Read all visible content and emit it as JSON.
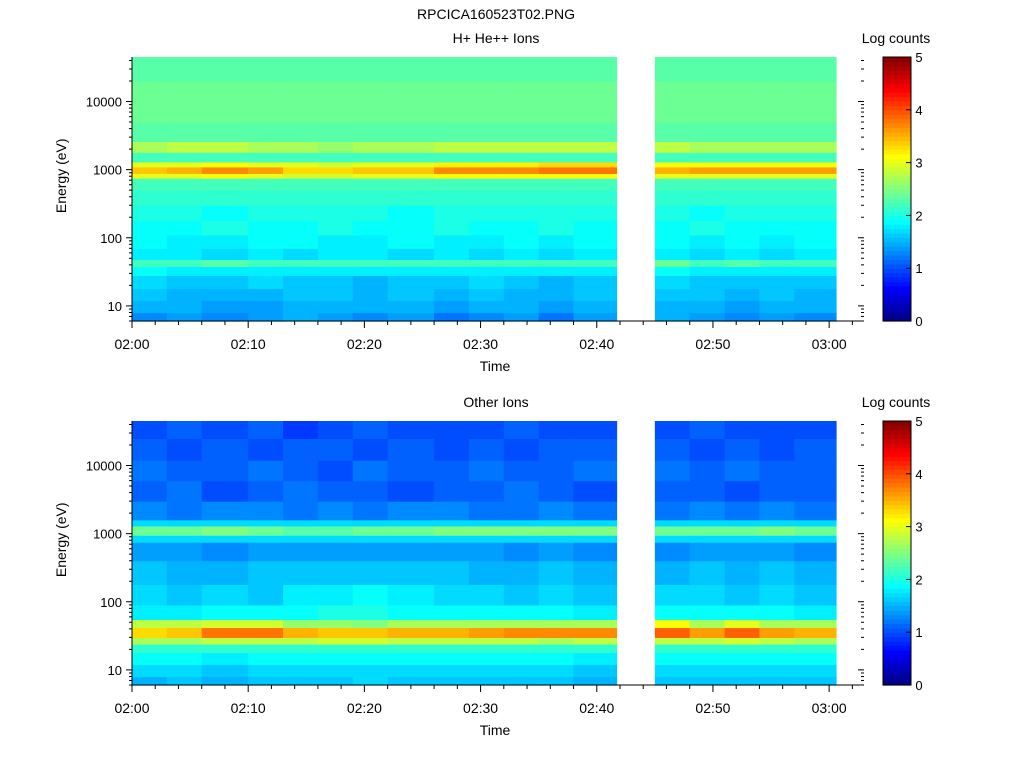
{
  "figure": {
    "title": "RPCICA160523T02.PNG"
  },
  "chart_data": [
    {
      "type": "heatmap",
      "title": "H+ He++ Ions",
      "xlabel": "Time",
      "ylabel": "Energy (eV)",
      "x_ticks": [
        "02:00",
        "02:10",
        "02:20",
        "02:30",
        "02:40",
        "02:50",
        "03:00"
      ],
      "x_range": [
        "02:00",
        "03:03"
      ],
      "y_scale": "log",
      "y_ticks": [
        "10",
        "100",
        "1000",
        "10000"
      ],
      "y_range": [
        6,
        45000
      ],
      "data_gap": [
        "02:41.7",
        "02:44.9"
      ],
      "time_bins": [
        "02:00",
        "02:03",
        "02:06",
        "02:10",
        "02:13",
        "02:16",
        "02:19",
        "02:22",
        "02:26",
        "02:29",
        "02:32",
        "02:35",
        "02:38",
        "02:45",
        "02:48",
        "02:51",
        "02:54",
        "02:57"
      ],
      "energy_bands": [
        {
          "energy_eV": [
            6,
            8
          ],
          "log_counts": [
            1.3,
            1.4,
            1.3,
            1.4,
            1.5,
            1.4,
            1.3,
            1.4,
            1.2,
            1.3,
            1.4,
            1.2,
            1.4,
            1.5,
            1.4,
            1.3,
            1.4,
            1.3
          ]
        },
        {
          "energy_eV": [
            8,
            12
          ],
          "log_counts": [
            1.5,
            1.5,
            1.4,
            1.4,
            1.5,
            1.5,
            1.5,
            1.5,
            1.4,
            1.5,
            1.5,
            1.4,
            1.5,
            1.5,
            1.5,
            1.4,
            1.5,
            1.5
          ]
        },
        {
          "energy_eV": [
            12,
            18
          ],
          "log_counts": [
            1.6,
            1.5,
            1.5,
            1.5,
            1.6,
            1.6,
            1.5,
            1.6,
            1.5,
            1.6,
            1.5,
            1.5,
            1.6,
            1.6,
            1.6,
            1.5,
            1.6,
            1.5
          ]
        },
        {
          "energy_eV": [
            18,
            28
          ],
          "log_counts": [
            1.7,
            1.6,
            1.6,
            1.7,
            1.6,
            1.6,
            1.5,
            1.6,
            1.6,
            1.7,
            1.6,
            1.5,
            1.6,
            1.7,
            1.6,
            1.6,
            1.6,
            1.6
          ]
        },
        {
          "energy_eV": [
            28,
            38
          ],
          "log_counts": [
            1.9,
            1.8,
            1.8,
            1.8,
            1.8,
            1.8,
            1.8,
            1.8,
            1.8,
            1.8,
            1.8,
            1.8,
            1.8,
            1.9,
            1.8,
            1.8,
            1.8,
            1.8
          ]
        },
        {
          "energy_eV": [
            38,
            48
          ],
          "log_counts": [
            2.2,
            2.2,
            2.3,
            2.2,
            2.2,
            2.2,
            2.2,
            2.2,
            2.2,
            2.2,
            2.2,
            2.2,
            2.2,
            2.4,
            2.2,
            2.3,
            2.2,
            2.2
          ]
        },
        {
          "energy_eV": [
            48,
            70
          ],
          "log_counts": [
            1.8,
            1.8,
            1.7,
            1.8,
            1.7,
            1.8,
            1.8,
            1.7,
            1.8,
            1.7,
            1.8,
            1.7,
            1.8,
            1.8,
            1.7,
            1.8,
            1.7,
            1.8
          ]
        },
        {
          "energy_eV": [
            70,
            110
          ],
          "log_counts": [
            1.9,
            1.8,
            1.8,
            1.9,
            1.9,
            1.8,
            1.8,
            1.9,
            1.8,
            1.8,
            1.9,
            1.8,
            1.9,
            1.9,
            1.8,
            1.9,
            1.8,
            1.9
          ]
        },
        {
          "energy_eV": [
            110,
            180
          ],
          "log_counts": [
            1.9,
            1.9,
            2.0,
            1.9,
            1.9,
            2.0,
            1.9,
            1.9,
            2.0,
            1.9,
            1.9,
            2.0,
            1.9,
            1.9,
            2.0,
            1.9,
            1.9,
            1.9
          ]
        },
        {
          "energy_eV": [
            180,
            300
          ],
          "log_counts": [
            2.0,
            2.0,
            1.9,
            2.0,
            2.0,
            2.0,
            2.0,
            1.9,
            2.0,
            2.0,
            2.0,
            2.0,
            2.0,
            2.0,
            1.9,
            2.0,
            2.0,
            2.0
          ]
        },
        {
          "energy_eV": [
            300,
            500
          ],
          "log_counts": [
            2.1,
            2.1,
            2.1,
            2.1,
            2.1,
            2.1,
            2.1,
            2.1,
            2.1,
            2.1,
            2.1,
            2.1,
            2.1,
            2.1,
            2.1,
            2.1,
            2.1,
            2.1
          ]
        },
        {
          "energy_eV": [
            500,
            750
          ],
          "log_counts": [
            2.2,
            2.2,
            2.2,
            2.2,
            2.2,
            2.2,
            2.2,
            2.2,
            2.2,
            2.2,
            2.2,
            2.2,
            2.2,
            2.2,
            2.2,
            2.2,
            2.2,
            2.2
          ]
        },
        {
          "energy_eV": [
            750,
            880
          ],
          "log_counts": [
            3.0,
            3.0,
            3.1,
            3.0,
            2.9,
            2.9,
            3.0,
            3.0,
            3.1,
            3.1,
            3.1,
            3.1,
            3.1,
            3.0,
            3.0,
            3.0,
            3.0,
            3.0
          ]
        },
        {
          "energy_eV": [
            880,
            1100
          ],
          "log_counts": [
            3.4,
            3.5,
            3.7,
            3.6,
            3.3,
            3.3,
            3.4,
            3.4,
            3.7,
            3.7,
            3.7,
            3.8,
            3.8,
            3.5,
            3.6,
            3.6,
            3.6,
            3.6
          ]
        },
        {
          "energy_eV": [
            1100,
            1300
          ],
          "log_counts": [
            3.0,
            3.0,
            3.1,
            3.0,
            3.0,
            2.9,
            3.0,
            3.0,
            3.2,
            3.2,
            3.2,
            3.3,
            3.3,
            3.1,
            3.1,
            3.1,
            3.1,
            3.1
          ]
        },
        {
          "energy_eV": [
            1300,
            1800
          ],
          "log_counts": [
            2.2,
            2.2,
            2.2,
            2.2,
            2.2,
            2.2,
            2.2,
            2.2,
            2.2,
            2.2,
            2.2,
            2.2,
            2.2,
            2.2,
            2.2,
            2.2,
            2.2,
            2.2
          ]
        },
        {
          "energy_eV": [
            1800,
            2600
          ],
          "log_counts": [
            2.7,
            2.8,
            2.8,
            2.7,
            2.7,
            2.6,
            2.7,
            2.7,
            2.8,
            2.8,
            2.8,
            2.8,
            2.8,
            2.8,
            2.7,
            2.7,
            2.7,
            2.7
          ]
        },
        {
          "energy_eV": [
            2600,
            5000
          ],
          "log_counts": [
            2.3,
            2.3,
            2.3,
            2.3,
            2.3,
            2.3,
            2.3,
            2.3,
            2.3,
            2.3,
            2.3,
            2.3,
            2.3,
            2.3,
            2.3,
            2.3,
            2.3,
            2.3
          ]
        },
        {
          "energy_eV": [
            5000,
            20000
          ],
          "log_counts": [
            2.4,
            2.4,
            2.4,
            2.4,
            2.4,
            2.4,
            2.4,
            2.4,
            2.4,
            2.4,
            2.4,
            2.4,
            2.4,
            2.4,
            2.4,
            2.4,
            2.4,
            2.4
          ]
        },
        {
          "energy_eV": [
            20000,
            45000
          ],
          "log_counts": [
            2.3,
            2.3,
            2.3,
            2.3,
            2.3,
            2.3,
            2.3,
            2.3,
            2.3,
            2.3,
            2.3,
            2.3,
            2.3,
            2.3,
            2.3,
            2.3,
            2.3,
            2.3
          ]
        }
      ],
      "colorbar": {
        "label": "Log counts",
        "range": [
          0,
          5
        ],
        "ticks": [
          "0",
          "1",
          "2",
          "3",
          "4",
          "5"
        ],
        "colormap": "jet"
      }
    },
    {
      "type": "heatmap",
      "title": "Other Ions",
      "xlabel": "Time",
      "ylabel": "Energy (eV)",
      "x_ticks": [
        "02:00",
        "02:10",
        "02:20",
        "02:30",
        "02:40",
        "02:50",
        "03:00"
      ],
      "x_range": [
        "02:00",
        "03:03"
      ],
      "y_scale": "log",
      "y_ticks": [
        "10",
        "100",
        "1000",
        "10000"
      ],
      "y_range": [
        6,
        45000
      ],
      "data_gap": [
        "02:41.7",
        "02:44.9"
      ],
      "time_bins": [
        "02:00",
        "02:03",
        "02:06",
        "02:10",
        "02:13",
        "02:16",
        "02:19",
        "02:22",
        "02:26",
        "02:29",
        "02:32",
        "02:35",
        "02:38",
        "02:45",
        "02:48",
        "02:51",
        "02:54",
        "02:57"
      ],
      "energy_bands": [
        {
          "energy_eV": [
            6,
            8
          ],
          "log_counts": [
            1.5,
            1.6,
            1.5,
            1.6,
            1.6,
            1.6,
            1.7,
            1.6,
            1.6,
            1.6,
            1.6,
            1.6,
            1.5,
            1.6,
            1.6,
            1.6,
            1.6,
            1.6
          ]
        },
        {
          "energy_eV": [
            8,
            12
          ],
          "log_counts": [
            1.7,
            1.7,
            1.6,
            1.7,
            1.7,
            1.7,
            1.7,
            1.7,
            1.7,
            1.7,
            1.7,
            1.7,
            1.6,
            1.7,
            1.7,
            1.7,
            1.7,
            1.7
          ]
        },
        {
          "energy_eV": [
            12,
            18
          ],
          "log_counts": [
            1.9,
            1.9,
            1.8,
            1.9,
            1.9,
            1.9,
            1.9,
            1.9,
            1.9,
            1.9,
            1.9,
            1.9,
            1.8,
            1.9,
            1.9,
            1.9,
            1.9,
            1.9
          ]
        },
        {
          "energy_eV": [
            18,
            24
          ],
          "log_counts": [
            2.1,
            2.1,
            2.1,
            2.1,
            2.1,
            2.1,
            2.1,
            2.1,
            2.1,
            2.1,
            2.1,
            2.1,
            2.1,
            2.1,
            2.1,
            2.1,
            2.1,
            2.1
          ]
        },
        {
          "energy_eV": [
            24,
            30
          ],
          "log_counts": [
            2.7,
            2.7,
            2.8,
            2.8,
            2.8,
            2.9,
            2.9,
            2.8,
            2.8,
            2.8,
            2.8,
            2.7,
            2.8,
            2.8,
            2.8,
            2.9,
            2.8,
            2.7
          ]
        },
        {
          "energy_eV": [
            30,
            42
          ],
          "log_counts": [
            3.3,
            3.4,
            3.8,
            3.8,
            3.5,
            3.4,
            3.4,
            3.5,
            3.5,
            3.6,
            3.7,
            3.7,
            3.7,
            3.9,
            3.6,
            3.9,
            3.6,
            3.5
          ]
        },
        {
          "energy_eV": [
            42,
            55
          ],
          "log_counts": [
            2.8,
            2.8,
            2.9,
            2.9,
            2.6,
            2.6,
            2.5,
            2.7,
            2.7,
            2.7,
            2.7,
            2.7,
            2.7,
            3.1,
            2.7,
            3.0,
            2.7,
            2.7
          ]
        },
        {
          "energy_eV": [
            55,
            90
          ],
          "log_counts": [
            1.8,
            1.8,
            1.9,
            1.9,
            1.9,
            2.0,
            2.0,
            1.9,
            1.9,
            1.9,
            1.9,
            1.9,
            1.8,
            1.9,
            1.9,
            1.9,
            1.9,
            1.8
          ]
        },
        {
          "energy_eV": [
            90,
            180
          ],
          "log_counts": [
            1.7,
            1.6,
            1.7,
            1.6,
            1.8,
            1.8,
            1.9,
            1.8,
            1.7,
            1.7,
            1.6,
            1.7,
            1.6,
            1.7,
            1.7,
            1.6,
            1.7,
            1.6
          ]
        },
        {
          "energy_eV": [
            180,
            400
          ],
          "log_counts": [
            1.6,
            1.5,
            1.5,
            1.6,
            1.6,
            1.6,
            1.6,
            1.6,
            1.6,
            1.5,
            1.5,
            1.6,
            1.5,
            1.5,
            1.6,
            1.5,
            1.6,
            1.5
          ]
        },
        {
          "energy_eV": [
            400,
            750
          ],
          "log_counts": [
            1.4,
            1.4,
            1.3,
            1.4,
            1.4,
            1.4,
            1.4,
            1.4,
            1.4,
            1.4,
            1.3,
            1.4,
            1.3,
            1.3,
            1.4,
            1.4,
            1.4,
            1.3
          ]
        },
        {
          "energy_eV": [
            750,
            950
          ],
          "log_counts": [
            1.7,
            1.7,
            1.7,
            1.7,
            1.7,
            1.7,
            1.7,
            1.7,
            1.7,
            1.7,
            1.7,
            1.7,
            1.7,
            1.7,
            1.7,
            1.7,
            1.7,
            1.7
          ]
        },
        {
          "energy_eV": [
            950,
            1300
          ],
          "log_counts": [
            2.4,
            2.4,
            2.5,
            2.4,
            2.3,
            2.3,
            2.4,
            2.4,
            2.5,
            2.5,
            2.5,
            2.5,
            2.5,
            2.4,
            2.4,
            2.4,
            2.5,
            2.4
          ]
        },
        {
          "energy_eV": [
            1300,
            1600
          ],
          "log_counts": [
            1.7,
            1.7,
            1.7,
            1.7,
            1.7,
            1.7,
            1.7,
            1.7,
            1.7,
            1.7,
            1.7,
            1.7,
            1.7,
            1.7,
            1.7,
            1.7,
            1.7,
            1.7
          ]
        },
        {
          "energy_eV": [
            1600,
            3000
          ],
          "log_counts": [
            1.3,
            1.2,
            1.3,
            1.3,
            1.2,
            1.3,
            1.2,
            1.3,
            1.3,
            1.2,
            1.2,
            1.3,
            1.2,
            1.2,
            1.3,
            1.2,
            1.3,
            1.2
          ]
        },
        {
          "energy_eV": [
            3000,
            6000
          ],
          "log_counts": [
            1.1,
            1.2,
            1.0,
            1.1,
            1.2,
            1.1,
            1.1,
            1.0,
            1.1,
            1.1,
            1.2,
            1.1,
            1.0,
            1.1,
            1.1,
            1.0,
            1.1,
            1.1
          ]
        },
        {
          "energy_eV": [
            6000,
            12000
          ],
          "log_counts": [
            1.2,
            1.1,
            1.1,
            1.2,
            1.1,
            1.0,
            1.2,
            1.1,
            1.1,
            1.2,
            1.1,
            1.1,
            1.2,
            1.2,
            1.1,
            1.2,
            1.1,
            1.1
          ]
        },
        {
          "energy_eV": [
            12000,
            25000
          ],
          "log_counts": [
            1.1,
            1.0,
            1.1,
            1.0,
            1.1,
            1.1,
            1.0,
            1.1,
            1.0,
            1.1,
            1.0,
            1.1,
            1.1,
            1.1,
            1.0,
            1.1,
            1.0,
            1.1
          ]
        },
        {
          "energy_eV": [
            25000,
            45000
          ],
          "log_counts": [
            1.0,
            1.1,
            1.0,
            1.1,
            0.9,
            1.0,
            1.1,
            1.0,
            1.0,
            1.0,
            1.1,
            1.0,
            1.0,
            1.0,
            1.1,
            1.0,
            1.0,
            1.0
          ]
        }
      ],
      "colorbar": {
        "label": "Log counts",
        "range": [
          0,
          5
        ],
        "ticks": [
          "0",
          "1",
          "2",
          "3",
          "4",
          "5"
        ],
        "colormap": "jet"
      }
    }
  ]
}
